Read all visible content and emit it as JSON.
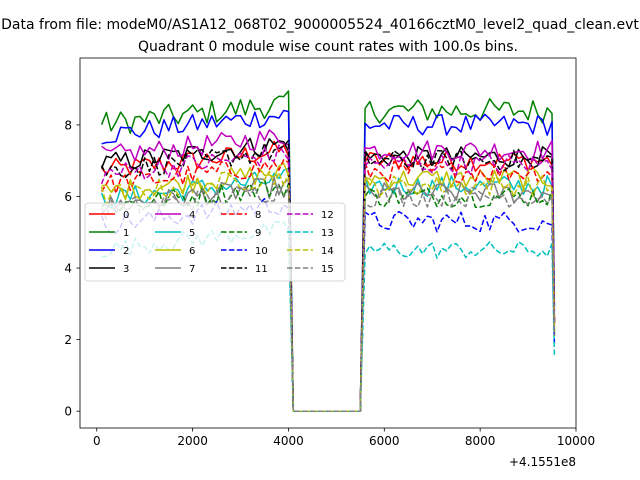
{
  "chart_data": {
    "type": "line",
    "suptitle": "Data from file: modeM0/AS1A12_068T02_9000005524_40166cztM0_level2_quad_clean.evt",
    "title": "Quadrant 0 module wise count rates with 100.0s bins.",
    "xlabel": "",
    "ylabel": "",
    "x_offset_label": "+4.1551e8",
    "xlim": [
      -350,
      10000
    ],
    "ylim": [
      -0.47,
      9.87
    ],
    "x_ticks": [
      0,
      2000,
      4000,
      6000,
      8000,
      10000
    ],
    "x_tick_labels": [
      "0",
      "2000",
      "4000",
      "6000",
      "8000",
      "10000"
    ],
    "y_ticks": [
      0,
      2,
      4,
      6,
      8
    ],
    "y_tick_labels": [
      "0",
      "2",
      "4",
      "6",
      "8"
    ],
    "grid": false,
    "legend_location": "center-left",
    "legend_columns": 4,
    "gap": {
      "start": 4000,
      "drop_end": 4100,
      "zero_until": 5500,
      "rise_end": 5600
    },
    "data_x_range": [
      100,
      9550
    ],
    "series": [
      {
        "name": "0",
        "color": "#ff0000",
        "dash": "solid",
        "level1": 7.0,
        "level2": 7.0,
        "noise": 0.3
      },
      {
        "name": "1",
        "color": "#008000",
        "dash": "solid",
        "level1": 8.3,
        "level2": 8.4,
        "noise": 0.35
      },
      {
        "name": "2",
        "color": "#0000ff",
        "dash": "solid",
        "level1": 8.0,
        "level2": 8.0,
        "noise": 0.3
      },
      {
        "name": "3",
        "color": "#000000",
        "dash": "solid",
        "level1": 7.2,
        "level2": 7.1,
        "noise": 0.3
      },
      {
        "name": "4",
        "color": "#bf00bf",
        "dash": "solid",
        "level1": 7.4,
        "level2": 7.3,
        "noise": 0.3
      },
      {
        "name": "5",
        "color": "#00bfbf",
        "dash": "solid",
        "level1": 6.2,
        "level2": 6.3,
        "noise": 0.3
      },
      {
        "name": "6",
        "color": "#bfbf00",
        "dash": "solid",
        "level1": 6.4,
        "level2": 6.5,
        "noise": 0.3
      },
      {
        "name": "7",
        "color": "#808080",
        "dash": "solid",
        "level1": 6.0,
        "level2": 6.1,
        "noise": 0.3
      },
      {
        "name": "8",
        "color": "#ff0000",
        "dash": "dashed",
        "level1": 6.6,
        "level2": 6.7,
        "noise": 0.3
      },
      {
        "name": "9",
        "color": "#008000",
        "dash": "dashed",
        "level1": 6.0,
        "level2": 6.0,
        "noise": 0.3
      },
      {
        "name": "10",
        "color": "#0000ff",
        "dash": "dashed",
        "level1": 5.5,
        "level2": 5.3,
        "noise": 0.3
      },
      {
        "name": "11",
        "color": "#000000",
        "dash": "dashed",
        "level1": 7.0,
        "level2": 7.0,
        "noise": 0.3
      },
      {
        "name": "12",
        "color": "#bf00bf",
        "dash": "dashed",
        "level1": 6.9,
        "level2": 6.9,
        "noise": 0.3
      },
      {
        "name": "13",
        "color": "#00bfbf",
        "dash": "dashed",
        "level1": 4.8,
        "level2": 4.5,
        "noise": 0.25
      },
      {
        "name": "14",
        "color": "#bfbf00",
        "dash": "dashed",
        "level1": 6.3,
        "level2": 6.3,
        "noise": 0.3
      },
      {
        "name": "15",
        "color": "#808080",
        "dash": "dashed",
        "level1": 5.9,
        "level2": 6.0,
        "noise": 0.3
      }
    ]
  }
}
